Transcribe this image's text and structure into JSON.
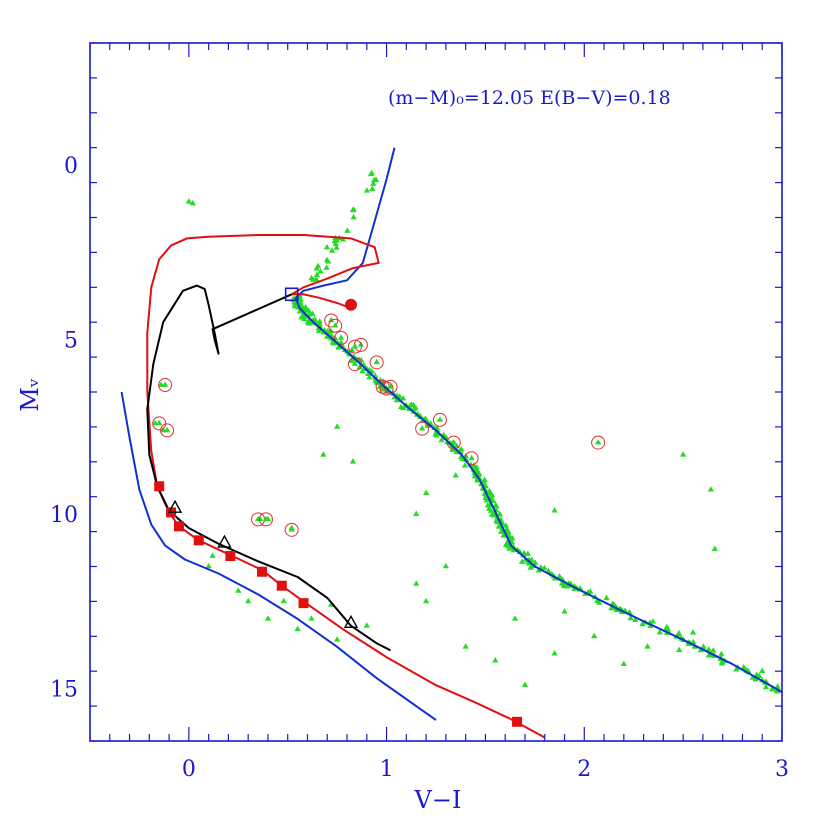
{
  "chart_data": {
    "type": "scatter",
    "title": "",
    "annotation": "(m−M)₀=12.05  E(B−V)=0.18",
    "xlabel": "V−I",
    "ylabel": "Mᵥ",
    "xlim": [
      -0.5,
      3.0
    ],
    "ylim": [
      16.5,
      -3.5
    ],
    "y_inverted": true,
    "x_ticks": [
      0,
      1,
      2,
      3
    ],
    "x_tick_labels": [
      "0",
      "1",
      "2",
      "3"
    ],
    "y_ticks": [
      0,
      5,
      10,
      15
    ],
    "y_tick_labels": [
      "0",
      "5",
      "10",
      "15"
    ],
    "grid": false,
    "colors": {
      "frame": "#1a1acc",
      "blue_curve": "#1030d0",
      "red_curve": "#e01010",
      "black_curve": "#000000",
      "stars": "#22dd22",
      "circles": "#e03030"
    },
    "series": [
      {
        "kind": "line",
        "color": "blue",
        "points": [
          [
            1.04,
            -0.5
          ],
          [
            1.0,
            0.4
          ],
          [
            0.96,
            1.2
          ],
          [
            0.92,
            2.0
          ],
          [
            0.88,
            2.8
          ],
          [
            0.8,
            3.3
          ],
          [
            0.68,
            3.45
          ],
          [
            0.58,
            3.6
          ],
          [
            0.54,
            3.8
          ],
          [
            0.56,
            4.1
          ],
          [
            0.63,
            4.5
          ],
          [
            0.73,
            5.0
          ],
          [
            0.85,
            5.6
          ],
          [
            0.98,
            6.3
          ],
          [
            1.12,
            7.0
          ],
          [
            1.25,
            7.6
          ],
          [
            1.38,
            8.3
          ],
          [
            1.47,
            9.0
          ],
          [
            1.53,
            9.7
          ],
          [
            1.58,
            10.3
          ],
          [
            1.63,
            10.9
          ],
          [
            1.75,
            11.5
          ],
          [
            1.95,
            12.1
          ],
          [
            2.2,
            12.8
          ],
          [
            2.5,
            13.6
          ],
          [
            2.75,
            14.3
          ],
          [
            3.0,
            15.1
          ]
        ]
      },
      {
        "kind": "line",
        "color": "blue",
        "points": [
          [
            -0.34,
            6.5
          ],
          [
            -0.3,
            7.8
          ],
          [
            -0.25,
            9.3
          ],
          [
            -0.19,
            10.3
          ],
          [
            -0.12,
            10.9
          ],
          [
            -0.02,
            11.3
          ],
          [
            0.15,
            11.7
          ],
          [
            0.35,
            12.3
          ],
          [
            0.55,
            13.0
          ],
          [
            0.75,
            13.8
          ],
          [
            0.95,
            14.7
          ],
          [
            1.25,
            15.9
          ]
        ]
      },
      {
        "kind": "line",
        "color": "red",
        "points": [
          [
            0.82,
            4.1
          ],
          [
            0.75,
            3.95
          ],
          [
            0.66,
            3.8
          ],
          [
            0.58,
            3.7
          ],
          [
            0.52,
            3.7
          ],
          [
            0.58,
            3.5
          ],
          [
            0.7,
            3.25
          ],
          [
            0.83,
            2.95
          ],
          [
            0.96,
            2.8
          ],
          [
            0.94,
            2.35
          ],
          [
            0.82,
            2.1
          ],
          [
            0.58,
            2.0
          ],
          [
            0.35,
            2.0
          ],
          [
            0.1,
            2.05
          ],
          [
            -0.01,
            2.1
          ],
          [
            -0.09,
            2.3
          ],
          [
            -0.15,
            2.7
          ],
          [
            -0.19,
            3.5
          ],
          [
            -0.21,
            4.8
          ],
          [
            -0.21,
            6.5
          ],
          [
            -0.19,
            8.2
          ],
          [
            -0.16,
            9.2
          ],
          [
            -0.1,
            9.95
          ],
          [
            -0.05,
            10.35
          ],
          [
            0.05,
            10.75
          ],
          [
            0.22,
            11.2
          ],
          [
            0.37,
            11.6
          ],
          [
            0.47,
            12.05
          ],
          [
            0.58,
            12.5
          ],
          [
            0.78,
            13.3
          ],
          [
            1.0,
            14.1
          ],
          [
            1.25,
            14.9
          ],
          [
            1.45,
            15.4
          ],
          [
            1.62,
            15.85
          ],
          [
            1.8,
            16.4
          ]
        ]
      },
      {
        "kind": "line",
        "color": "black",
        "points": [
          [
            0.52,
            3.7
          ],
          [
            0.12,
            4.7
          ],
          [
            0.13,
            5.0
          ],
          [
            0.15,
            5.4
          ],
          [
            0.13,
            4.8
          ],
          [
            0.1,
            4.0
          ],
          [
            0.08,
            3.55
          ],
          [
            0.04,
            3.45
          ],
          [
            -0.03,
            3.6
          ],
          [
            -0.13,
            4.5
          ],
          [
            -0.18,
            5.7
          ],
          [
            -0.21,
            7.0
          ],
          [
            -0.2,
            8.3
          ],
          [
            -0.16,
            9.2
          ],
          [
            -0.1,
            9.9
          ],
          [
            0.0,
            10.4
          ],
          [
            0.15,
            10.85
          ],
          [
            0.35,
            11.35
          ],
          [
            0.55,
            11.8
          ],
          [
            0.7,
            12.4
          ],
          [
            0.82,
            13.2
          ],
          [
            0.95,
            13.7
          ],
          [
            1.02,
            13.9
          ]
        ]
      }
    ],
    "markers": {
      "red_squares": [
        [
          -0.15,
          9.2
        ],
        [
          -0.09,
          9.95
        ],
        [
          -0.05,
          10.35
        ],
        [
          0.05,
          10.75
        ],
        [
          0.21,
          11.2
        ],
        [
          0.37,
          11.65
        ],
        [
          0.47,
          12.05
        ],
        [
          0.58,
          12.55
        ],
        [
          1.66,
          15.95
        ]
      ],
      "black_triangles": [
        [
          -0.07,
          9.8
        ],
        [
          0.18,
          10.8
        ],
        [
          0.82,
          13.1
        ]
      ],
      "open_square": [
        [
          0.52,
          3.7
        ]
      ],
      "red_dot": [
        [
          0.82,
          4.0
        ]
      ],
      "green_stars_main_sequence_fit": "dense along blue curve from V−I 0.55 to 2.95",
      "green_stars_outliers": [
        [
          0.0,
          1.05
        ],
        [
          0.02,
          1.1
        ],
        [
          -0.14,
          6.3
        ],
        [
          -0.17,
          7.4
        ],
        [
          -0.13,
          7.6
        ],
        [
          0.36,
          10.15
        ],
        [
          0.4,
          10.15
        ],
        [
          0.52,
          10.4
        ],
        [
          0.12,
          11.2
        ],
        [
          0.25,
          12.2
        ],
        [
          0.4,
          13.0
        ],
        [
          0.48,
          12.5
        ],
        [
          0.55,
          13.3
        ],
        [
          0.72,
          12.6
        ],
        [
          0.75,
          13.6
        ],
        [
          0.9,
          13.2
        ],
        [
          1.15,
          12.0
        ],
        [
          1.2,
          12.5
        ],
        [
          1.3,
          11.5
        ],
        [
          1.4,
          13.8
        ],
        [
          1.55,
          14.2
        ],
        [
          1.65,
          13.0
        ],
        [
          1.7,
          14.9
        ],
        [
          1.85,
          14.0
        ],
        [
          1.9,
          12.8
        ],
        [
          2.05,
          13.5
        ],
        [
          2.2,
          14.3
        ],
        [
          2.32,
          13.8
        ],
        [
          2.48,
          13.9
        ],
        [
          2.5,
          8.3
        ],
        [
          2.55,
          13.4
        ],
        [
          2.66,
          11.0
        ],
        [
          2.64,
          9.3
        ],
        [
          2.9,
          14.5
        ],
        [
          0.68,
          8.3
        ],
        [
          0.75,
          7.5
        ],
        [
          0.83,
          8.5
        ],
        [
          1.2,
          9.4
        ],
        [
          1.15,
          10.0
        ],
        [
          1.35,
          8.9
        ],
        [
          1.85,
          9.9
        ],
        [
          0.1,
          11.5
        ],
        [
          0.3,
          12.5
        ],
        [
          0.62,
          13.0
        ]
      ],
      "circled_stars": [
        [
          0.72,
          4.45
        ],
        [
          0.74,
          4.6
        ],
        [
          0.77,
          4.95
        ],
        [
          0.87,
          5.15
        ],
        [
          0.84,
          5.2
        ],
        [
          0.84,
          5.7
        ],
        [
          0.95,
          5.65
        ],
        [
          0.98,
          6.35
        ],
        [
          1.0,
          6.4
        ],
        [
          1.02,
          6.35
        ],
        [
          1.18,
          7.55
        ],
        [
          1.27,
          7.3
        ],
        [
          1.34,
          7.95
        ],
        [
          1.43,
          8.4
        ],
        [
          2.07,
          7.95
        ],
        [
          -0.12,
          6.3
        ],
        [
          -0.15,
          7.4
        ],
        [
          -0.11,
          7.6
        ],
        [
          0.35,
          10.15
        ],
        [
          0.39,
          10.15
        ],
        [
          0.52,
          10.45
        ]
      ]
    }
  }
}
